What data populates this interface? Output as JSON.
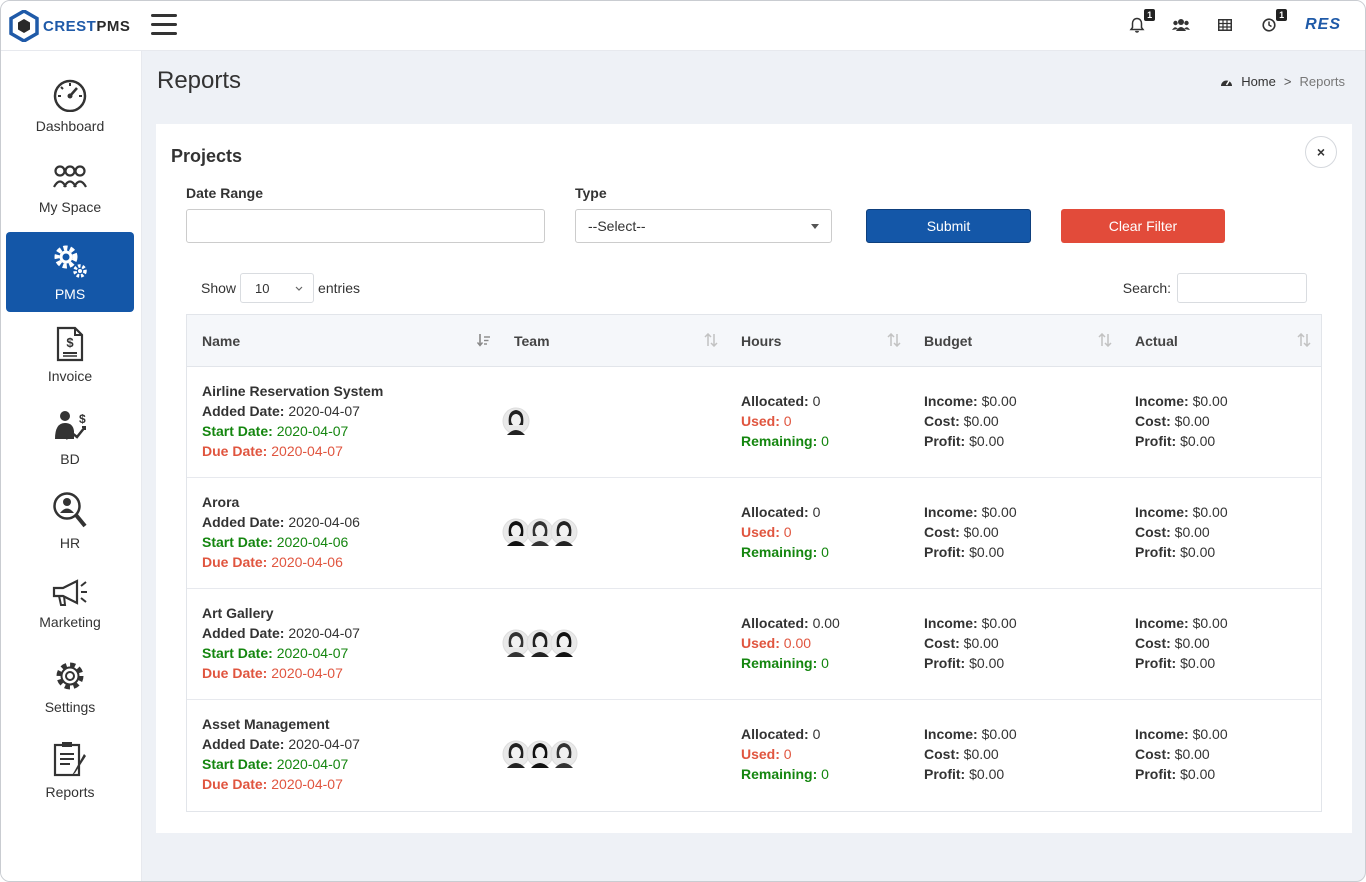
{
  "header": {
    "logo_text_a": "CREST",
    "logo_text_b": "PMS",
    "notification_count": "1",
    "timer_count": "1",
    "user_short": "RES"
  },
  "sidebar": {
    "items": [
      {
        "label": "Dashboard",
        "icon": "speedometer-icon"
      },
      {
        "label": "My Space",
        "icon": "team-icon"
      },
      {
        "label": "PMS",
        "icon": "gears-icon"
      },
      {
        "label": "Invoice",
        "icon": "invoice-icon"
      },
      {
        "label": "BD",
        "icon": "business-dev-icon"
      },
      {
        "label": "HR",
        "icon": "hr-search-icon"
      },
      {
        "label": "Marketing",
        "icon": "megaphone-icon"
      },
      {
        "label": "Settings",
        "icon": "gear-icon"
      },
      {
        "label": "Reports",
        "icon": "report-icon"
      }
    ],
    "active": "PMS"
  },
  "page": {
    "title": "Reports",
    "breadcrumb_home": "Home",
    "breadcrumb_sep": ">",
    "breadcrumb_current": "Reports"
  },
  "filters": {
    "card_title": "Projects",
    "date_range_label": "Date Range",
    "date_range_value": "",
    "type_label": "Type",
    "type_selected": "--Select--",
    "submit_label": "Submit",
    "clear_label": "Clear Filter",
    "close_symbol": "×"
  },
  "table_controls": {
    "show_label": "Show",
    "entries_value": "10",
    "entries_label": "entries",
    "search_label": "Search:"
  },
  "table": {
    "columns": [
      "Name",
      "Team",
      "Hours",
      "Budget",
      "Actual"
    ],
    "labels": {
      "added": "Added Date:",
      "start": "Start Date:",
      "due": "Due Date:",
      "allocated": "Allocated:",
      "used": "Used:",
      "remaining": "Remaining:",
      "income": "Income:",
      "cost": "Cost:",
      "profit": "Profit:"
    },
    "rows": [
      {
        "name": "Airline Reservation System",
        "added": "2020-04-07",
        "start": "2020-04-07",
        "due": "2020-04-07",
        "team_size": 1,
        "allocated": "0",
        "used": "0",
        "remaining": "0",
        "b_income": "$0.00",
        "b_cost": "$0.00",
        "b_profit": "$0.00",
        "a_income": "$0.00",
        "a_cost": "$0.00",
        "a_profit": "$0.00"
      },
      {
        "name": "Arora",
        "added": "2020-04-06",
        "start": "2020-04-06",
        "due": "2020-04-06",
        "team_size": 3,
        "allocated": "0",
        "used": "0",
        "remaining": "0",
        "b_income": "$0.00",
        "b_cost": "$0.00",
        "b_profit": "$0.00",
        "a_income": "$0.00",
        "a_cost": "$0.00",
        "a_profit": "$0.00"
      },
      {
        "name": "Art Gallery",
        "added": "2020-04-07",
        "start": "2020-04-07",
        "due": "2020-04-07",
        "team_size": 3,
        "allocated": "0.00",
        "used": "0.00",
        "remaining": "0",
        "b_income": "$0.00",
        "b_cost": "$0.00",
        "b_profit": "$0.00",
        "a_income": "$0.00",
        "a_cost": "$0.00",
        "a_profit": "$0.00"
      },
      {
        "name": "Asset Management",
        "added": "2020-04-07",
        "start": "2020-04-07",
        "due": "2020-04-07",
        "team_size": 3,
        "allocated": "0",
        "used": "0",
        "remaining": "0",
        "b_income": "$0.00",
        "b_cost": "$0.00",
        "b_profit": "$0.00",
        "a_income": "$0.00",
        "a_cost": "$0.00",
        "a_profit": "$0.00"
      }
    ]
  },
  "colors": {
    "brand": "#1457a8",
    "danger": "#e24b3a",
    "green": "#14860f",
    "red": "#e0553f"
  }
}
